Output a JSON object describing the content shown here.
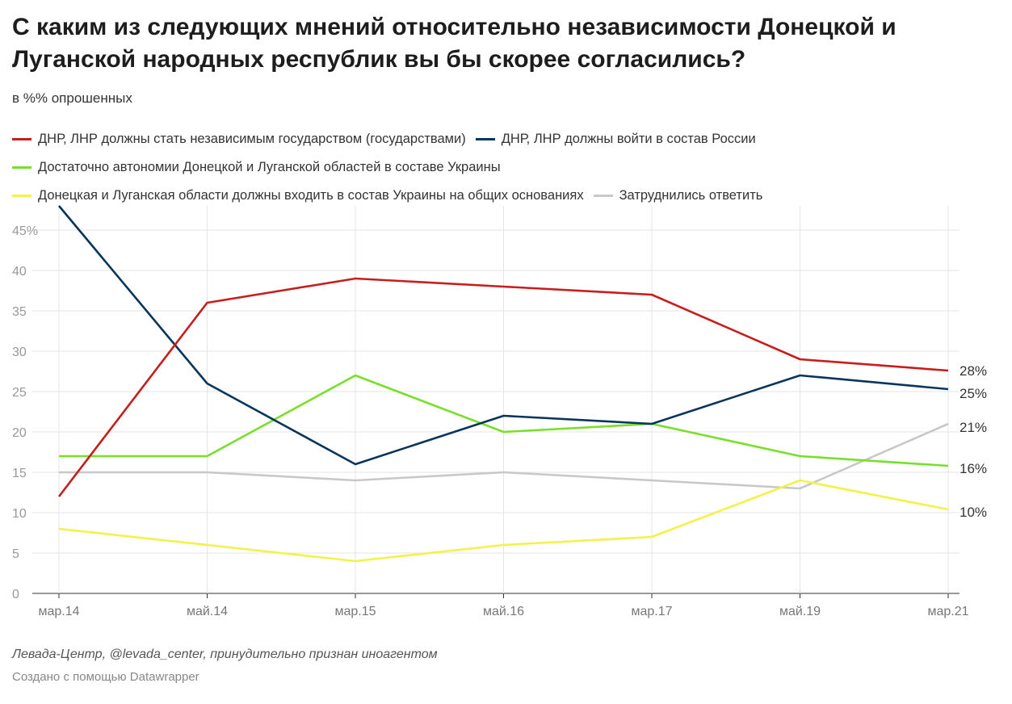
{
  "title": "С каким из следующих мнений относительно независимости Донецкой и Луганской народных республик вы бы скорее согласились?",
  "subtitle": "в %% опрошенных",
  "source": "Левада-Центр, @levada_center, принудительно признан иноагентом",
  "credit": "Создано с помощью Datawrapper",
  "chart_data": {
    "type": "line",
    "x": [
      "мар.14",
      "май.14",
      "мар.15",
      "май.16",
      "мар.17",
      "май.19",
      "мар.21"
    ],
    "ylim": [
      0,
      48
    ],
    "yticks": [
      0,
      5,
      10,
      15,
      20,
      25,
      30,
      35,
      40,
      45
    ],
    "ytick_labels": [
      "0",
      "5",
      "10",
      "15",
      "20",
      "25",
      "30",
      "35",
      "40",
      "45%"
    ],
    "grid": true,
    "legend_position": "top",
    "series": [
      {
        "name": "ДНР, ЛНР должны стать независимым государством (государствами)",
        "color": "#c71e1d",
        "values": [
          12,
          36,
          39,
          38,
          37,
          29,
          27.6
        ],
        "end_label": "28%"
      },
      {
        "name": "ДНР, ЛНР должны войти в состав России",
        "color": "#09355c",
        "values": [
          48,
          26,
          16,
          22,
          21,
          27,
          25.3
        ],
        "end_label": "25%"
      },
      {
        "name": "Достаточно автономии Донецкой и Луганской областей в составе Украины",
        "color": "#78e02a",
        "values": [
          17,
          17,
          27,
          20,
          21,
          17,
          15.8
        ],
        "end_label": "16%"
      },
      {
        "name": "Донецкая и Луганская области должны входить в состав Украины на общих основаниях",
        "color": "#f2f24a",
        "values": [
          8,
          6,
          4,
          6,
          7,
          14,
          10.4
        ],
        "end_label": "10%"
      },
      {
        "name": "Затруднились ответить",
        "color": "#c8c8c8",
        "values": [
          15,
          15,
          14,
          15,
          14,
          13,
          21
        ],
        "end_label": "21%"
      }
    ]
  }
}
